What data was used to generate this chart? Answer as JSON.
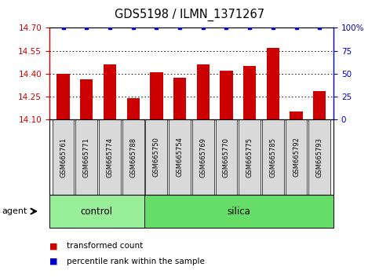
{
  "title": "GDS5198 / ILMN_1371267",
  "samples": [
    "GSM665761",
    "GSM665771",
    "GSM665774",
    "GSM665788",
    "GSM665750",
    "GSM665754",
    "GSM665769",
    "GSM665770",
    "GSM665775",
    "GSM665785",
    "GSM665792",
    "GSM665793"
  ],
  "red_values": [
    14.4,
    14.365,
    14.46,
    14.24,
    14.41,
    14.375,
    14.46,
    14.42,
    14.45,
    14.57,
    14.15,
    14.285
  ],
  "blue_values": [
    100,
    100,
    100,
    100,
    100,
    100,
    100,
    100,
    100,
    100,
    100,
    100
  ],
  "ylim_left": [
    14.1,
    14.7
  ],
  "ylim_right": [
    0,
    100
  ],
  "yticks_left": [
    14.1,
    14.25,
    14.4,
    14.55,
    14.7
  ],
  "yticks_right": [
    0,
    25,
    50,
    75,
    100
  ],
  "red_color": "#cc0000",
  "blue_color": "#0000cc",
  "bar_bg_color": "#d9d9d9",
  "control_color": "#99ee99",
  "silica_color": "#66dd66",
  "n_control": 4,
  "n_silica": 8,
  "agent_label": "agent",
  "control_label": "control",
  "silica_label": "silica",
  "legend_red": "transformed count",
  "legend_blue": "percentile rank within the sample"
}
